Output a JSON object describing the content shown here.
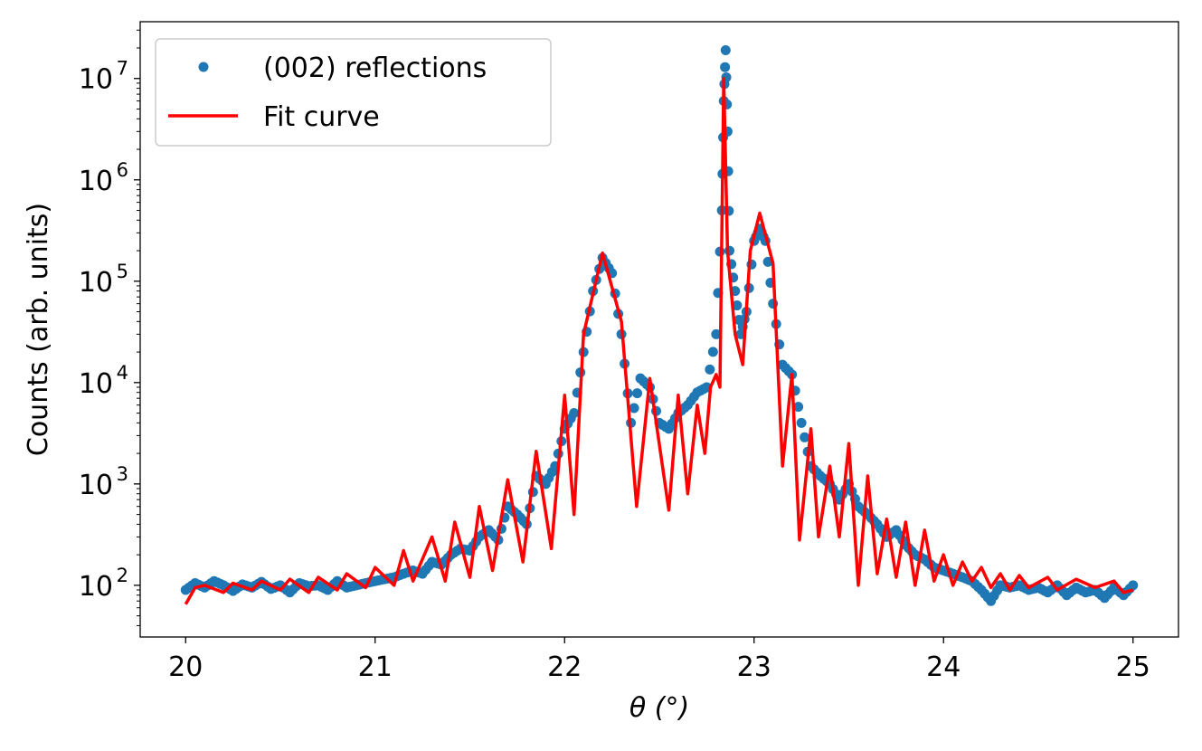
{
  "chart_data": {
    "type": "scatter",
    "title": "",
    "xlabel": "θ (°)",
    "ylabel": "Counts (arb. units)",
    "xlim": [
      19.76,
      25.24
    ],
    "ylim_log10": [
      1.49,
      7.56
    ],
    "yscale": "log",
    "xticks": [
      "20",
      "21",
      "22",
      "23",
      "24",
      "25"
    ],
    "yticks": [
      {
        "exp": "2"
      },
      {
        "exp": "3"
      },
      {
        "exp": "4"
      },
      {
        "exp": "5"
      },
      {
        "exp": "6"
      },
      {
        "exp": "7"
      }
    ],
    "ytick_base": "10",
    "legend": {
      "placement": "top-left",
      "entries": [
        "(002) reflections",
        "Fit curve"
      ]
    },
    "colors": {
      "scatter": "#1f77b4",
      "fit": "#ff0000"
    },
    "series": [
      {
        "name": "(002) reflections",
        "kind": "scatter",
        "x": [
          20.0,
          20.05,
          20.1,
          20.15,
          20.2,
          20.25,
          20.3,
          20.35,
          20.4,
          20.45,
          20.5,
          20.55,
          20.6,
          20.65,
          20.7,
          20.75,
          20.8,
          20.85,
          20.9,
          20.95,
          21.0,
          21.05,
          21.1,
          21.15,
          21.2,
          21.25,
          21.3,
          21.35,
          21.4,
          21.45,
          21.5,
          21.55,
          21.6,
          21.65,
          21.7,
          21.75,
          21.8,
          21.85,
          21.9,
          21.95,
          22.0,
          22.05,
          22.1,
          22.15,
          22.2,
          22.25,
          22.3,
          22.35,
          22.4,
          22.45,
          22.5,
          22.55,
          22.6,
          22.65,
          22.7,
          22.75,
          22.8,
          22.83,
          22.84,
          22.85,
          22.86,
          22.87,
          22.9,
          22.93,
          22.96,
          23.0,
          23.03,
          23.06,
          23.1,
          23.15,
          23.2,
          23.25,
          23.3,
          23.35,
          23.4,
          23.45,
          23.5,
          23.55,
          23.6,
          23.65,
          23.7,
          23.75,
          23.8,
          23.85,
          23.9,
          23.95,
          24.0,
          24.05,
          24.1,
          24.15,
          24.2,
          24.25,
          24.3,
          24.35,
          24.4,
          24.45,
          24.5,
          24.55,
          24.6,
          24.65,
          24.7,
          24.75,
          24.8,
          24.85,
          24.9,
          24.95,
          25.0
        ],
        "y": [
          90,
          105,
          95,
          110,
          100,
          88,
          102,
          95,
          108,
          92,
          100,
          85,
          105,
          98,
          100,
          90,
          110,
          95,
          100,
          105,
          110,
          115,
          120,
          130,
          140,
          130,
          170,
          160,
          200,
          230,
          220,
          300,
          350,
          280,
          600,
          500,
          400,
          1200,
          1000,
          1500,
          3500,
          5000,
          20000,
          80000,
          170000,
          120000,
          30000,
          4000,
          11000,
          9000,
          4000,
          3500,
          5000,
          6000,
          8000,
          9000,
          30000,
          500000,
          6000000,
          19000000,
          3000000,
          200000,
          80000,
          30000,
          50000,
          250000,
          330000,
          250000,
          60000,
          15000,
          12000,
          4000,
          1500,
          1200,
          1000,
          700,
          1000,
          600,
          500,
          400,
          300,
          350,
          250,
          200,
          180,
          150,
          140,
          130,
          120,
          110,
          90,
          70,
          100,
          95,
          100,
          90,
          95,
          85,
          100,
          80,
          95,
          85,
          90,
          75,
          95,
          80,
          100
        ]
      },
      {
        "name": "Fit curve",
        "kind": "line",
        "x": [
          20.0,
          20.05,
          20.1,
          20.2,
          20.25,
          20.35,
          20.4,
          20.5,
          20.55,
          20.65,
          20.7,
          20.8,
          20.85,
          20.95,
          21.0,
          21.1,
          21.15,
          21.2,
          21.3,
          21.37,
          21.42,
          21.5,
          21.55,
          21.62,
          21.7,
          21.78,
          21.85,
          21.93,
          22.0,
          22.05,
          22.1,
          22.2,
          22.3,
          22.38,
          22.45,
          22.55,
          22.6,
          22.65,
          22.7,
          22.74,
          22.77,
          22.8,
          22.82,
          22.84,
          22.86,
          22.9,
          22.94,
          22.98,
          23.03,
          23.1,
          23.15,
          23.2,
          23.24,
          23.3,
          23.34,
          23.4,
          23.45,
          23.5,
          23.55,
          23.6,
          23.65,
          23.7,
          23.75,
          23.8,
          23.85,
          23.9,
          23.95,
          24.0,
          24.05,
          24.1,
          24.15,
          24.2,
          24.25,
          24.3,
          24.35,
          24.4,
          24.45,
          24.55,
          24.6,
          24.7,
          24.8,
          24.9,
          24.95,
          25.0
        ],
        "y": [
          65,
          95,
          100,
          85,
          105,
          90,
          110,
          90,
          115,
          85,
          120,
          90,
          130,
          95,
          150,
          100,
          220,
          110,
          300,
          110,
          420,
          120,
          600,
          140,
          1100,
          170,
          2100,
          230,
          7500,
          500,
          30000,
          190000,
          40000,
          600,
          11000,
          550,
          7500,
          800,
          6000,
          2000,
          9000,
          12000,
          9000,
          10000000,
          200000,
          30000,
          15000,
          200000,
          470000,
          150000,
          1500,
          12000,
          280,
          3500,
          300,
          1500,
          300,
          2500,
          100,
          1200,
          130,
          450,
          120,
          420,
          100,
          350,
          110,
          200,
          100,
          170,
          110,
          150,
          95,
          130,
          90,
          125,
          95,
          120,
          90,
          115,
          95,
          110,
          85,
          90
        ]
      }
    ]
  }
}
